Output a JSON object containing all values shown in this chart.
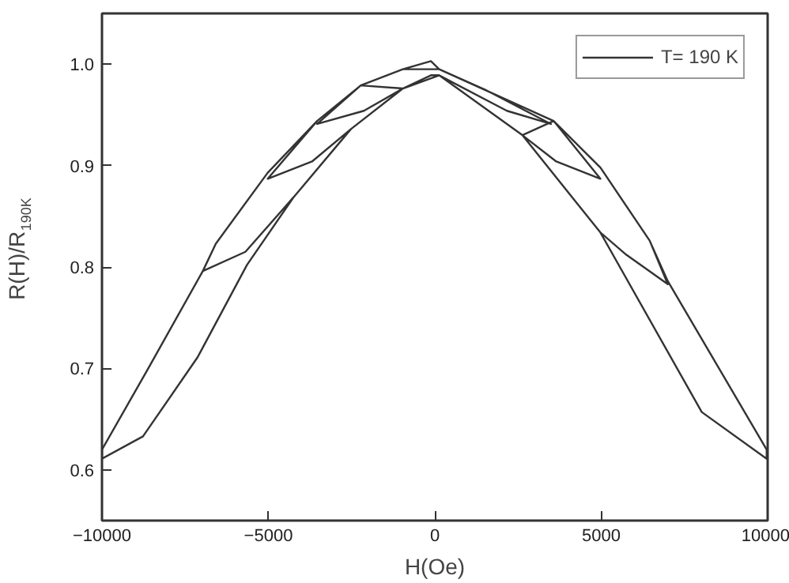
{
  "chart_data": {
    "type": "line",
    "xlabel": "H(Oe)",
    "ylabel": "R(H)/R$_{190K}$",
    "xlim": [
      -10000,
      10000
    ],
    "ylim": [
      0.55,
      1.05
    ],
    "xticks": [
      -10000,
      -5000,
      0,
      5000,
      10000
    ],
    "yticks": [
      0.6,
      0.7,
      0.8,
      0.9,
      {
        "value": 1.0,
        "label": "1.0"
      }
    ],
    "legend": "top right",
    "grid": false,
    "marker": "none",
    "line_style": "solid",
    "series": [
      {
        "name": "T= 190 K",
        "color": "#333333",
        "x": [
          9970,
          8020,
          4975,
          2630,
          130,
          -117,
          -960,
          -2520,
          -4239,
          -5644,
          -7128,
          -8768,
          -10000,
          -10000,
          -8610,
          -6970,
          -6580,
          -5020,
          -3536,
          -2225,
          -960,
          -117,
          130,
          3570,
          4975,
          6455,
          7000,
          9970,
          9970,
          8020,
          4975,
          2630,
          130,
          -960,
          -2520,
          -4239,
          -5690,
          -6970,
          -6580,
          -5020,
          -3536,
          -2225,
          -960,
          130,
          3570,
          4975,
          6455,
          7000,
          5755,
          4975,
          2630,
          3650,
          4975,
          3570,
          2630,
          130,
          -960,
          -2520,
          -3690,
          -5020,
          -3536,
          -2225,
          -960,
          -2130,
          -3536,
          -2225,
          -960,
          130,
          1500,
          3490,
          2165,
          130
        ],
        "values": [
          0.611,
          0.657,
          0.834,
          0.93,
          0.989,
          0.989,
          0.976,
          0.936,
          0.869,
          0.802,
          0.711,
          0.633,
          0.611,
          0.62,
          0.7,
          0.796,
          0.823,
          0.893,
          0.944,
          0.979,
          0.995,
          1.003,
          0.995,
          0.944,
          0.898,
          0.826,
          0.786,
          0.62,
          0.611,
          0.657,
          0.834,
          0.93,
          0.989,
          0.976,
          0.936,
          0.869,
          0.815,
          0.796,
          0.823,
          0.893,
          0.944,
          0.979,
          0.995,
          0.995,
          0.944,
          0.898,
          0.826,
          0.783,
          0.812,
          0.834,
          0.93,
          0.904,
          0.887,
          0.944,
          0.93,
          0.989,
          0.976,
          0.936,
          0.904,
          0.887,
          0.944,
          0.979,
          0.976,
          0.954,
          0.941,
          0.979,
          0.995,
          0.995,
          0.975,
          0.941,
          0.954,
          0.989
        ]
      }
    ]
  }
}
